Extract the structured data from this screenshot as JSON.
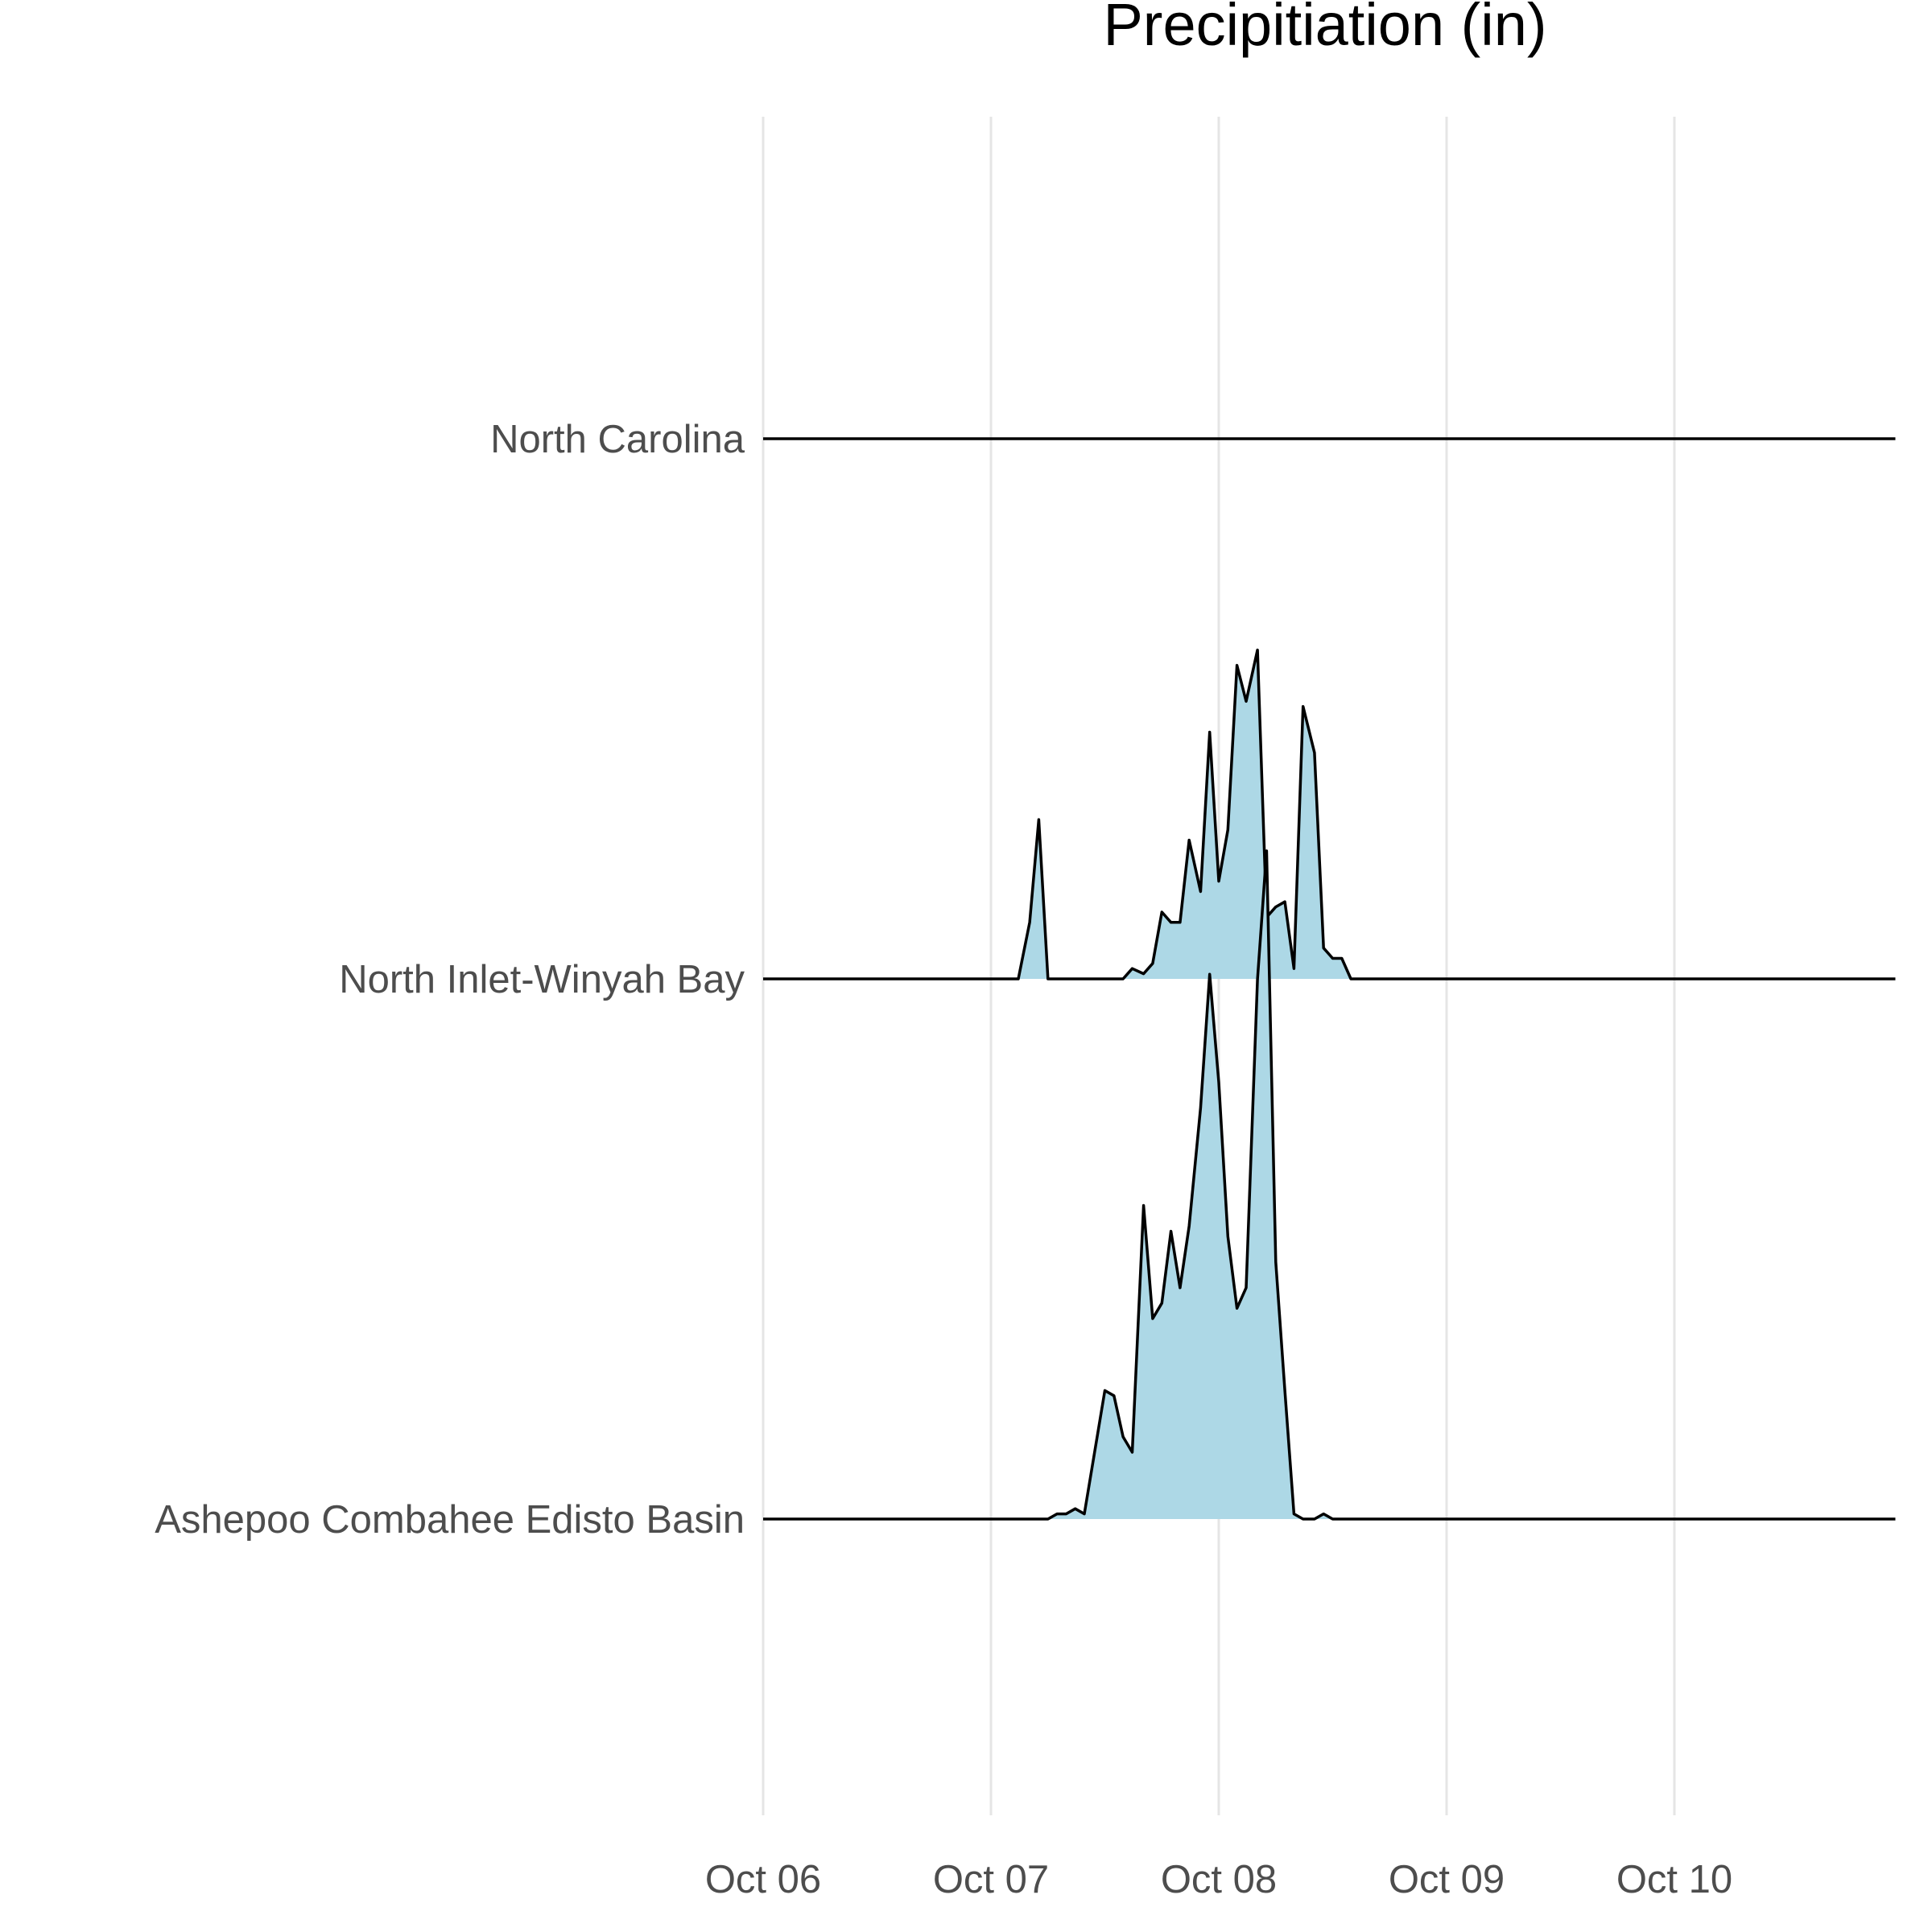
{
  "chart_data": {
    "type": "area",
    "subtype": "ridgeline",
    "title": "Precipitiation (in)",
    "xlabel": "",
    "ylabel": "",
    "x_ticks": [
      "Oct 06",
      "Oct 07",
      "Oct 08",
      "Oct 09",
      "Oct 10"
    ],
    "x_range_days": [
      0,
      4.97
    ],
    "fill_color": "#add8e6",
    "line_color": "#000000",
    "grid": "vertical major only",
    "legend": "none",
    "series": [
      {
        "name": "Ashepoo Combahee Edisto Basin",
        "points": [
          [
            0.0,
            0
          ],
          [
            1.25,
            0
          ],
          [
            1.29,
            0.01
          ],
          [
            1.33,
            0.01
          ],
          [
            1.37,
            0.02
          ],
          [
            1.41,
            0.01
          ],
          [
            1.5,
            0.25
          ],
          [
            1.54,
            0.24
          ],
          [
            1.58,
            0.16
          ],
          [
            1.62,
            0.13
          ],
          [
            1.67,
            0.61
          ],
          [
            1.71,
            0.39
          ],
          [
            1.75,
            0.42
          ],
          [
            1.79,
            0.56
          ],
          [
            1.83,
            0.45
          ],
          [
            1.87,
            0.57
          ],
          [
            1.92,
            0.8
          ],
          [
            1.96,
            1.06
          ],
          [
            2.0,
            0.85
          ],
          [
            2.04,
            0.55
          ],
          [
            2.08,
            0.41
          ],
          [
            2.12,
            0.45
          ],
          [
            2.17,
            1.05
          ],
          [
            2.21,
            1.3
          ],
          [
            2.25,
            0.5
          ],
          [
            2.29,
            0.25
          ],
          [
            2.33,
            0.01
          ],
          [
            2.37,
            0
          ],
          [
            2.42,
            0
          ],
          [
            2.46,
            0.01
          ],
          [
            2.5,
            0
          ],
          [
            4.97,
            0
          ]
        ]
      },
      {
        "name": "North Inlet-Winyah Bay",
        "points": [
          [
            0.0,
            0
          ],
          [
            1.12,
            0
          ],
          [
            1.17,
            0.11
          ],
          [
            1.21,
            0.31
          ],
          [
            1.25,
            0
          ],
          [
            1.58,
            0
          ],
          [
            1.62,
            0.02
          ],
          [
            1.67,
            0.01
          ],
          [
            1.71,
            0.03
          ],
          [
            1.75,
            0.13
          ],
          [
            1.79,
            0.11
          ],
          [
            1.83,
            0.11
          ],
          [
            1.87,
            0.27
          ],
          [
            1.92,
            0.17
          ],
          [
            1.96,
            0.48
          ],
          [
            2.0,
            0.19
          ],
          [
            2.04,
            0.29
          ],
          [
            2.08,
            0.61
          ],
          [
            2.12,
            0.54
          ],
          [
            2.17,
            0.64
          ],
          [
            2.21,
            0.12
          ],
          [
            2.25,
            0.14
          ],
          [
            2.29,
            0.15
          ],
          [
            2.33,
            0.02
          ],
          [
            2.37,
            0.53
          ],
          [
            2.42,
            0.44
          ],
          [
            2.46,
            0.06
          ],
          [
            2.5,
            0.04
          ],
          [
            2.54,
            0.04
          ],
          [
            2.58,
            0
          ],
          [
            4.97,
            0
          ]
        ]
      },
      {
        "name": "North Carolina",
        "points": [
          [
            0.0,
            0
          ],
          [
            4.97,
            0
          ]
        ]
      }
    ]
  }
}
